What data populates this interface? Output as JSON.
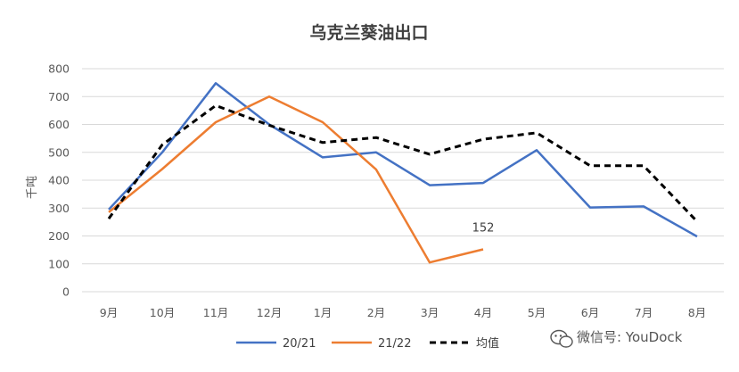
{
  "chart_data": {
    "type": "line",
    "title": "乌克兰葵油出口",
    "xlabel": "",
    "ylabel": "千吨",
    "ylim": [
      0,
      800
    ],
    "yticks": [
      0,
      100,
      200,
      300,
      400,
      500,
      600,
      700,
      800
    ],
    "categories": [
      "9月",
      "10月",
      "11月",
      "12月",
      "1月",
      "2月",
      "3月",
      "4月",
      "5月",
      "6月",
      "7月",
      "8月"
    ],
    "grid": true,
    "legend_position": "bottom",
    "series": [
      {
        "name": "20/21",
        "color": "#4472C4",
        "style": "solid",
        "values": [
          295,
          500,
          748,
          600,
          482,
          500,
          382,
          390,
          508,
          302,
          306,
          198
        ]
      },
      {
        "name": "21/22",
        "color": "#ED7D31",
        "style": "solid",
        "values": [
          285,
          440,
          608,
          700,
          608,
          438,
          105,
          152,
          null,
          null,
          null,
          null
        ]
      },
      {
        "name": "均值",
        "color": "#000000",
        "style": "dashed",
        "values": [
          262,
          527,
          668,
          597,
          535,
          553,
          493,
          547,
          570,
          452,
          452,
          252
        ]
      }
    ],
    "annotations": [
      {
        "category": "4月",
        "series": "21/22",
        "text": "152"
      }
    ]
  },
  "watermark": {
    "icon": "wechat-icon",
    "text": "微信号: YouDock"
  }
}
